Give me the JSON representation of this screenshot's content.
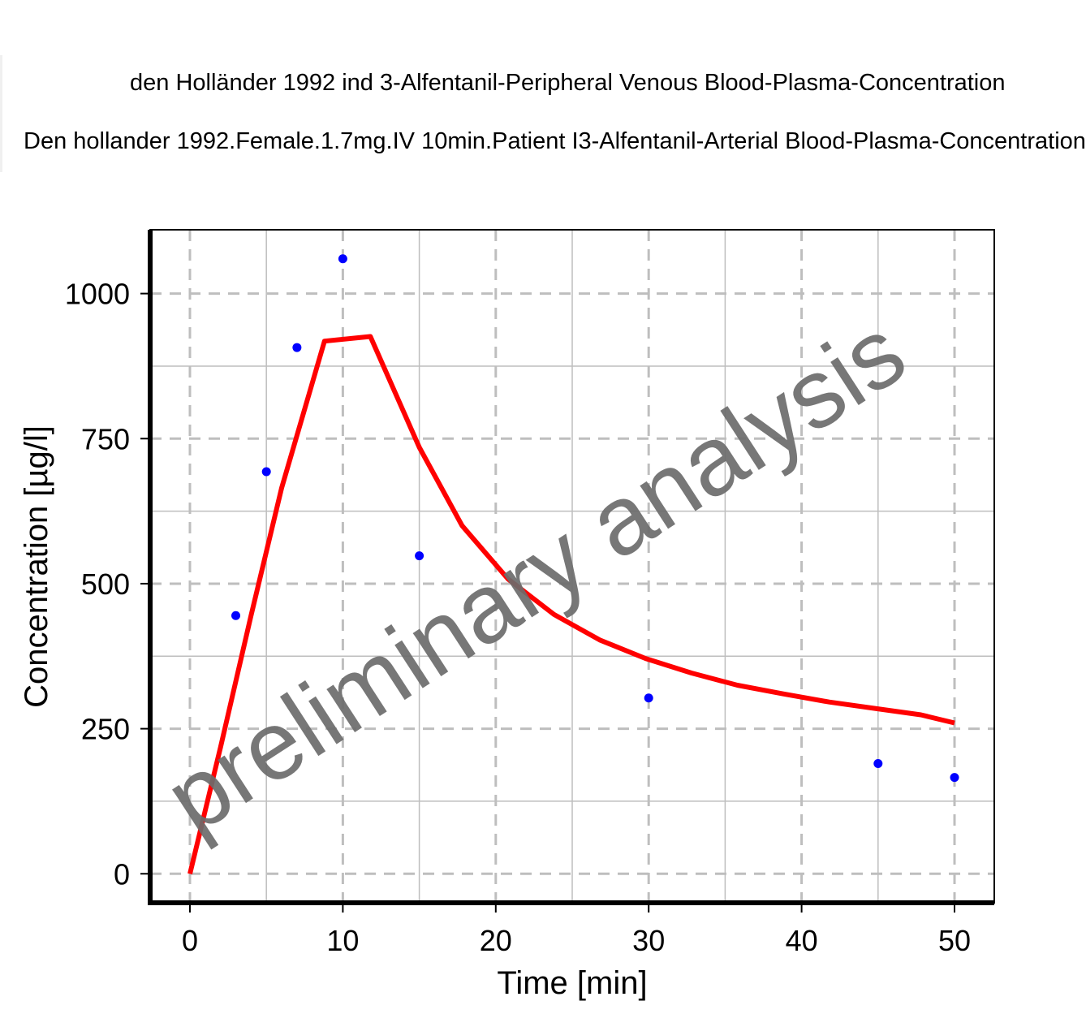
{
  "legend": {
    "line1": "den Holländer 1992 ind 3-Alfentanil-Peripheral Venous Blood-Plasma-Concentration",
    "line2": "Den hollander 1992.Female.1.7mg.IV 10min.Patient I3-Alfentanil-Arterial Blood-Plasma-Concentration"
  },
  "watermark": "preliminary analysis",
  "colors": {
    "observed": "#0000ff",
    "simulated": "#ff0000",
    "grid": "#bebebe",
    "watermark": "#6b6b6b"
  },
  "chart_data": {
    "type": "scatter",
    "xlabel": "Time [min]",
    "ylabel": "Concentration [µg/l]",
    "xlim": [
      -2.6,
      52.6
    ],
    "ylim": [
      -50,
      1110
    ],
    "xticks": [
      0,
      10,
      20,
      30,
      40,
      50
    ],
    "yticks": [
      0,
      250,
      500,
      750,
      1000
    ],
    "grid": true,
    "legend_position": "top",
    "series": [
      {
        "kind": "points",
        "x": [
          3,
          5,
          7,
          10,
          15,
          30,
          45,
          50
        ],
        "y": [
          445,
          693,
          907,
          1060,
          548,
          303,
          190,
          166
        ]
      },
      {
        "kind": "line",
        "x": [
          0,
          2,
          4,
          6,
          8.8,
          11.8,
          15,
          17.8,
          20.8,
          23.8,
          26.8,
          29.8,
          32.8,
          35.8,
          38.8,
          41.8,
          44.8,
          47.8,
          50
        ],
        "y": [
          0,
          218,
          445,
          665,
          918,
          926,
          735,
          600,
          508,
          447,
          403,
          371,
          346,
          325,
          310,
          296,
          285,
          274,
          260
        ]
      }
    ]
  }
}
